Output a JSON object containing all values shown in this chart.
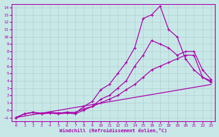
{
  "title": "",
  "xlabel": "Windchill (Refroidissement éolien,°C)",
  "ylabel": "",
  "bg_color": "#c8e8e8",
  "grid_color": "#b0d0d0",
  "line_color": "#aa00aa",
  "xlim": [
    -0.5,
    23.5
  ],
  "ylim": [
    -1.5,
    14.5
  ],
  "xticks": [
    0,
    1,
    2,
    3,
    4,
    5,
    6,
    7,
    8,
    9,
    10,
    11,
    12,
    13,
    14,
    15,
    16,
    17,
    18,
    19,
    20,
    21,
    22,
    23
  ],
  "yticks": [
    -1,
    0,
    1,
    2,
    3,
    4,
    5,
    6,
    7,
    8,
    9,
    10,
    11,
    12,
    13,
    14
  ],
  "line1_x": [
    0,
    1,
    2,
    3,
    4,
    5,
    6,
    7,
    8,
    9,
    10,
    11,
    12,
    13,
    14,
    15,
    16,
    17,
    18,
    19,
    20,
    21,
    22,
    23
  ],
  "line1_y": [
    -1,
    -0.5,
    -0.3,
    -0.5,
    -0.3,
    -0.4,
    -0.3,
    -0.4,
    0.5,
    1.2,
    2.8,
    3.5,
    5.0,
    6.5,
    8.5,
    12.5,
    13.0,
    14.2,
    11.0,
    10.0,
    7.0,
    5.5,
    4.5,
    3.8
  ],
  "line2_x": [
    0,
    1,
    2,
    3,
    4,
    5,
    6,
    7,
    8,
    9,
    10,
    11,
    12,
    13,
    14,
    15,
    16,
    17,
    18,
    19,
    20,
    21,
    22,
    23
  ],
  "line2_y": [
    -1,
    -0.5,
    -0.3,
    -0.5,
    -0.4,
    -0.5,
    -0.4,
    -0.5,
    0.0,
    0.5,
    1.5,
    2.0,
    3.0,
    4.0,
    6.0,
    7.5,
    9.5,
    9.0,
    8.5,
    7.5,
    8.0,
    8.0,
    5.5,
    4.2
  ],
  "line3_x": [
    0,
    1,
    2,
    3,
    4,
    5,
    6,
    7,
    8,
    9,
    10,
    11,
    12,
    13,
    14,
    15,
    16,
    17,
    18,
    19,
    20,
    21,
    22,
    23
  ],
  "line3_y": [
    -1,
    -0.5,
    -0.3,
    -0.4,
    -0.4,
    -0.4,
    -0.3,
    -0.3,
    0.2,
    0.5,
    1.0,
    1.5,
    2.0,
    2.8,
    3.5,
    4.5,
    5.5,
    6.0,
    6.5,
    7.0,
    7.5,
    7.5,
    4.5,
    4.0
  ],
  "line4_x": [
    0,
    23
  ],
  "line4_y": [
    -1,
    3.5
  ]
}
